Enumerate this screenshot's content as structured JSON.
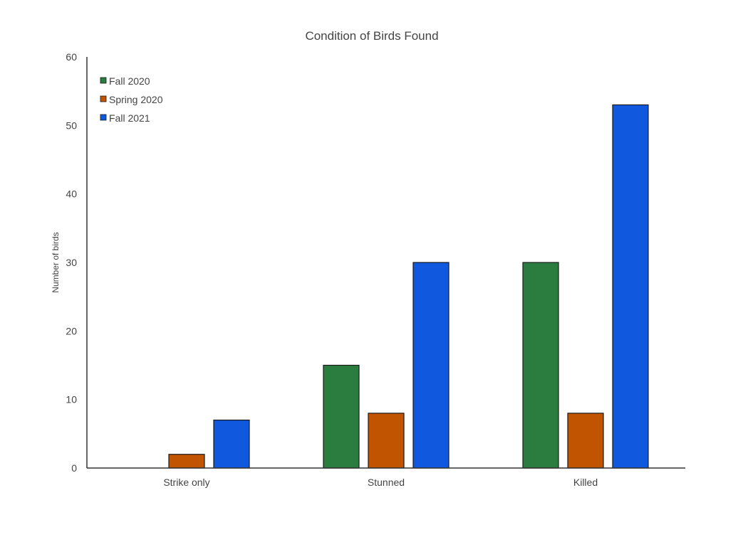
{
  "chart_data": {
    "type": "bar",
    "title": "Condition of Birds Found",
    "xlabel": "",
    "ylabel": "Number of birds",
    "ylim": [
      0,
      60
    ],
    "yticks": [
      0,
      10,
      20,
      30,
      40,
      50,
      60
    ],
    "categories": [
      "Strike only",
      "Stunned",
      "Killed"
    ],
    "series": [
      {
        "name": "Fall 2020",
        "color": "#2a7d3e",
        "values": [
          0,
          15,
          30
        ]
      },
      {
        "name": "Spring 2020",
        "color": "#c05400",
        "values": [
          2,
          8,
          8
        ]
      },
      {
        "name": "Fall 2021",
        "color": "#1059de",
        "values": [
          7,
          30,
          53
        ]
      }
    ],
    "legend_position": "top-left",
    "grid": false
  }
}
